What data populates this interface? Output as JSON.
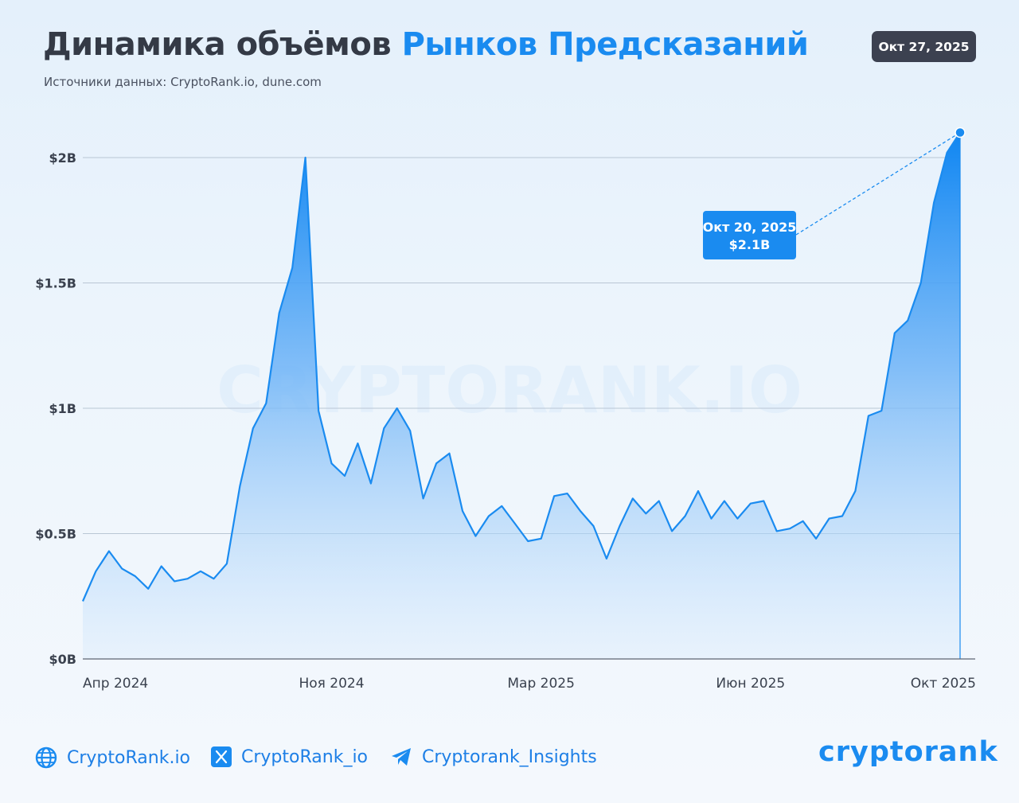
{
  "header": {
    "title_main": "Динамика объёмов ",
    "title_accent": "Рынков Предсказаний",
    "subtitle": "Источники данных: CryptoRank.io, dune.com",
    "date_badge": "Окт 27, 2025"
  },
  "colors": {
    "accent": "#1a8bf0",
    "line": "#1a8bf0",
    "title": "#343a46",
    "badge_bg": "#3c4150",
    "callout_bg": "#1a8bf0"
  },
  "chart_data": {
    "type": "area",
    "title": "Динамика объёмов Рынков Предсказаний",
    "subtitle": "Источники данных: CryptoRank.io, dune.com",
    "watermark": "CRYPTORANK.IO",
    "xlabel": "",
    "ylabel": "",
    "ylim": [
      0,
      2.1
    ],
    "yunit": "B USD",
    "y_ticks": [
      {
        "value": 0,
        "label": "$0B"
      },
      {
        "value": 0.5,
        "label": "$0.5B"
      },
      {
        "value": 1,
        "label": "$1B"
      },
      {
        "value": 1.5,
        "label": "$1.5B"
      },
      {
        "value": 2,
        "label": "$2B"
      }
    ],
    "x_ticks": [
      {
        "index": 0,
        "label": "Апр 2024"
      },
      {
        "index": 19,
        "label": "Ноя 2024"
      },
      {
        "index": 35,
        "label": "Мар 2025"
      },
      {
        "index": 51,
        "label": "Июн 2025"
      },
      {
        "index": 67,
        "label": "Окт 2025"
      }
    ],
    "grid": true,
    "series": [
      {
        "values": [
          0.23,
          0.35,
          0.43,
          0.36,
          0.33,
          0.28,
          0.37,
          0.31,
          0.32,
          0.35,
          0.32,
          0.38,
          0.69,
          0.92,
          1.02,
          1.38,
          1.56,
          2.0,
          0.99,
          0.78,
          0.73,
          0.86,
          0.7,
          0.92,
          1.0,
          0.91,
          0.64,
          0.78,
          0.82,
          0.59,
          0.49,
          0.57,
          0.61,
          0.54,
          0.47,
          0.48,
          0.65,
          0.66,
          0.59,
          0.53,
          0.4,
          0.53,
          0.64,
          0.58,
          0.63,
          0.51,
          0.57,
          0.67,
          0.56,
          0.63,
          0.56,
          0.62,
          0.63,
          0.51,
          0.52,
          0.55,
          0.48,
          0.56,
          0.57,
          0.67,
          0.97,
          0.99,
          1.3,
          1.35,
          1.5,
          1.82,
          2.02,
          2.1
        ]
      }
    ],
    "annotation": {
      "date": "Окт 20, 2025",
      "value_label": "$2.1B",
      "value": 2.1,
      "index": 67
    }
  },
  "footer": {
    "website": "CryptoRank.io",
    "twitter": "CryptoRank_io",
    "telegram": "Cryptorank_Insights",
    "brand": "cryptorank",
    "icons": [
      "globe-icon",
      "x-twitter-icon",
      "telegram-icon"
    ]
  }
}
